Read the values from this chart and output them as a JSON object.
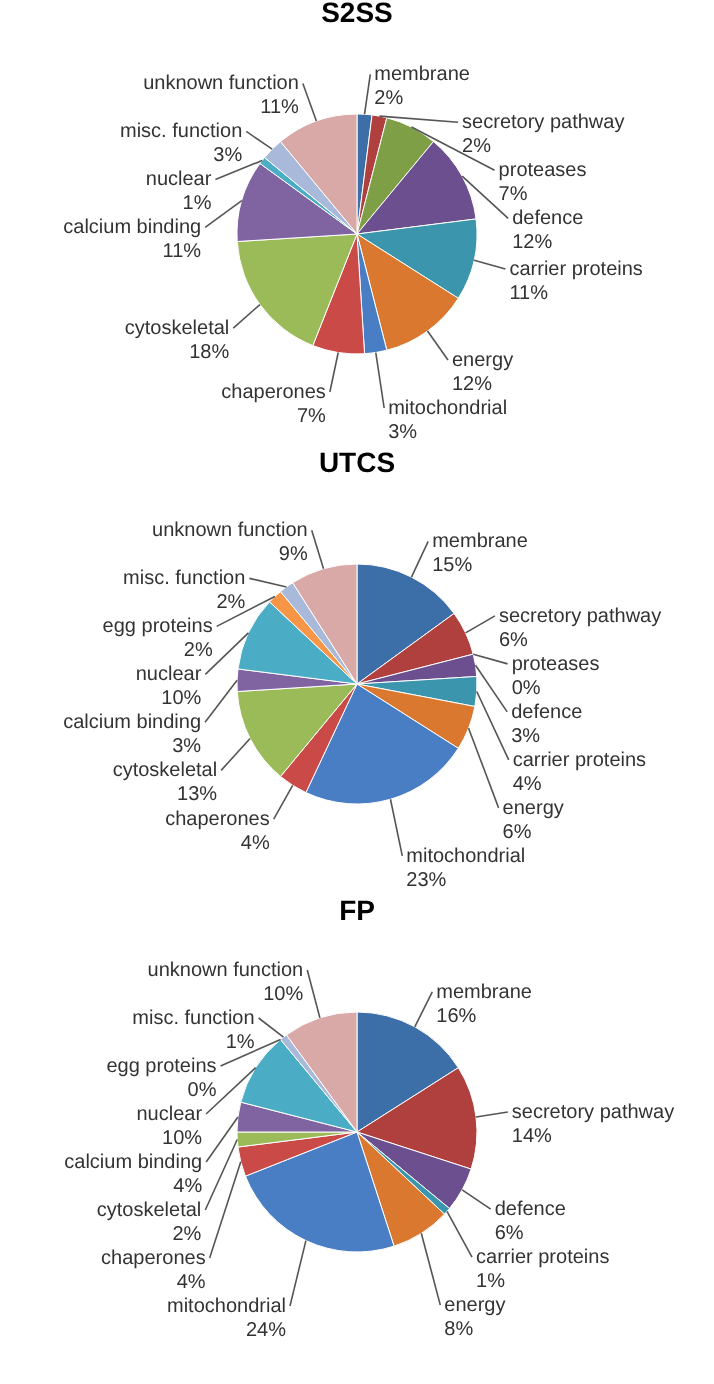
{
  "chart_data": [
    {
      "type": "pie",
      "title": "S2SS",
      "legend": false,
      "categories": [
        "membrane",
        "secretory pathway",
        "proteases",
        "defence",
        "carrier proteins",
        "energy",
        "mitochondrial",
        "chaperones",
        "cytoskeletal",
        "calcium binding",
        "nuclear",
        "misc. function",
        "unknown function"
      ],
      "values": [
        2,
        2,
        7,
        12,
        11,
        12,
        3,
        7,
        18,
        11,
        1,
        3,
        11
      ],
      "value_labels": [
        "2%",
        "2%",
        "7%",
        "12%",
        "11%",
        "12%",
        "3%",
        "7%",
        "18%",
        "11%",
        "1%",
        "3%",
        "11%"
      ],
      "colors": [
        "#3c6ea8",
        "#b0403d",
        "#7f9f46",
        "#6b4f8e",
        "#3a95ad",
        "#d9782e",
        "#4a7ec4",
        "#c94a47",
        "#9bbb59",
        "#8064a2",
        "#4bacc6",
        "#a8b9d9",
        "#d9a9a8"
      ]
    },
    {
      "type": "pie",
      "title": "UTCS",
      "legend": false,
      "categories": [
        "membrane",
        "secretory pathway",
        "proteases",
        "defence",
        "carrier proteins",
        "energy",
        "mitochondrial",
        "chaperones",
        "cytoskeletal",
        "calcium binding",
        "nuclear",
        "egg proteins",
        "misc. function",
        "unknown function"
      ],
      "values": [
        15,
        6,
        0,
        3,
        4,
        6,
        23,
        4,
        13,
        3,
        10,
        2,
        2,
        9
      ],
      "value_labels": [
        "15%",
        "6%",
        "0%",
        "3%",
        "4%",
        "6%",
        "23%",
        "4%",
        "13%",
        "3%",
        "10%",
        "2%",
        "2%",
        "9%"
      ],
      "colors": [
        "#3c6ea8",
        "#b0403d",
        "#7f9f46",
        "#6b4f8e",
        "#3a95ad",
        "#d9782e",
        "#4a7ec4",
        "#c94a47",
        "#9bbb59",
        "#8064a2",
        "#4bacc6",
        "#f79646",
        "#a8b9d9",
        "#d9a9a8"
      ]
    },
    {
      "type": "pie",
      "title": "FP",
      "legend": false,
      "categories": [
        "membrane",
        "secretory pathway",
        "defence",
        "carrier proteins",
        "energy",
        "mitochondrial",
        "chaperones",
        "cytoskeletal",
        "calcium binding",
        "nuclear",
        "egg proteins",
        "misc. function",
        "unknown function"
      ],
      "values": [
        16,
        14,
        6,
        1,
        8,
        24,
        4,
        2,
        4,
        10,
        0,
        1,
        10
      ],
      "value_labels": [
        "16%",
        "14%",
        "6%",
        "1%",
        "8%",
        "24%",
        "4%",
        "2%",
        "4%",
        "10%",
        "0%",
        "1%",
        "10%"
      ],
      "colors": [
        "#3c6ea8",
        "#b0403d",
        "#6b4f8e",
        "#3a95ad",
        "#d9782e",
        "#4a7ec4",
        "#c94a47",
        "#9bbb59",
        "#8064a2",
        "#4bacc6",
        "#f79646",
        "#a8b9d9",
        "#d9a9a8"
      ]
    }
  ]
}
